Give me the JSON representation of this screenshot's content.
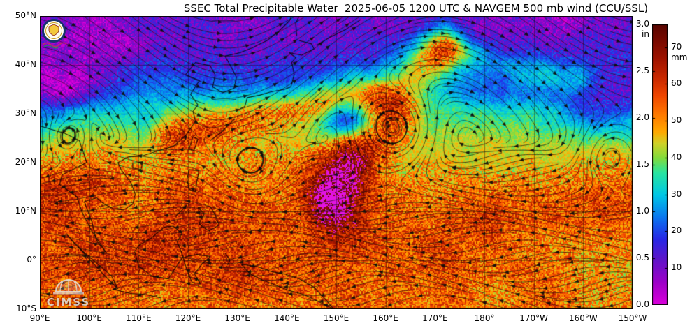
{
  "title": "SSEC Total Precipitable Water  2025-06-05 1200 UTC & NAVGEM 500 mb wind (CCU/SSL)",
  "axes": {
    "lat_labels": [
      "50°N",
      "40°N",
      "30°N",
      "20°N",
      "10°N",
      "0°",
      "10°S"
    ],
    "lon_labels": [
      "90°E",
      "100°E",
      "110°E",
      "120°E",
      "130°E",
      "140°E",
      "150°E",
      "160°E",
      "170°E",
      "180°",
      "170°W",
      "160°W",
      "150°W"
    ]
  },
  "colorbar": {
    "unit_in": "in",
    "unit_mm": "mm",
    "ticks_in": [
      "3.0",
      "2.5",
      "2.0",
      "1.5",
      "1.0",
      "0.5",
      "0.0"
    ],
    "ticks_mm": [
      "70",
      "60",
      "50",
      "40",
      "30",
      "20",
      "10"
    ],
    "max_mm": 76.2,
    "stops": [
      [
        0,
        "#dc00dc"
      ],
      [
        6,
        "#a000c8"
      ],
      [
        12,
        "#6414c8"
      ],
      [
        18,
        "#2828e6"
      ],
      [
        24,
        "#0a78f0"
      ],
      [
        30,
        "#00c8e6"
      ],
      [
        36,
        "#28e6a0"
      ],
      [
        40,
        "#82dc3c"
      ],
      [
        44,
        "#d2d228"
      ],
      [
        47,
        "#ffaa00"
      ],
      [
        52,
        "#ff7800"
      ],
      [
        57,
        "#f04600"
      ],
      [
        62,
        "#c82800"
      ],
      [
        67,
        "#a01400"
      ],
      [
        72,
        "#780a00"
      ],
      [
        76.2,
        "#5a0500"
      ]
    ]
  },
  "overlay": {
    "field_name": "Total Precipitable Water",
    "wind_level": "500 mb",
    "valid": "2025-06-05 1200 UTC"
  },
  "watermark": {
    "text": "CIMSS"
  }
}
